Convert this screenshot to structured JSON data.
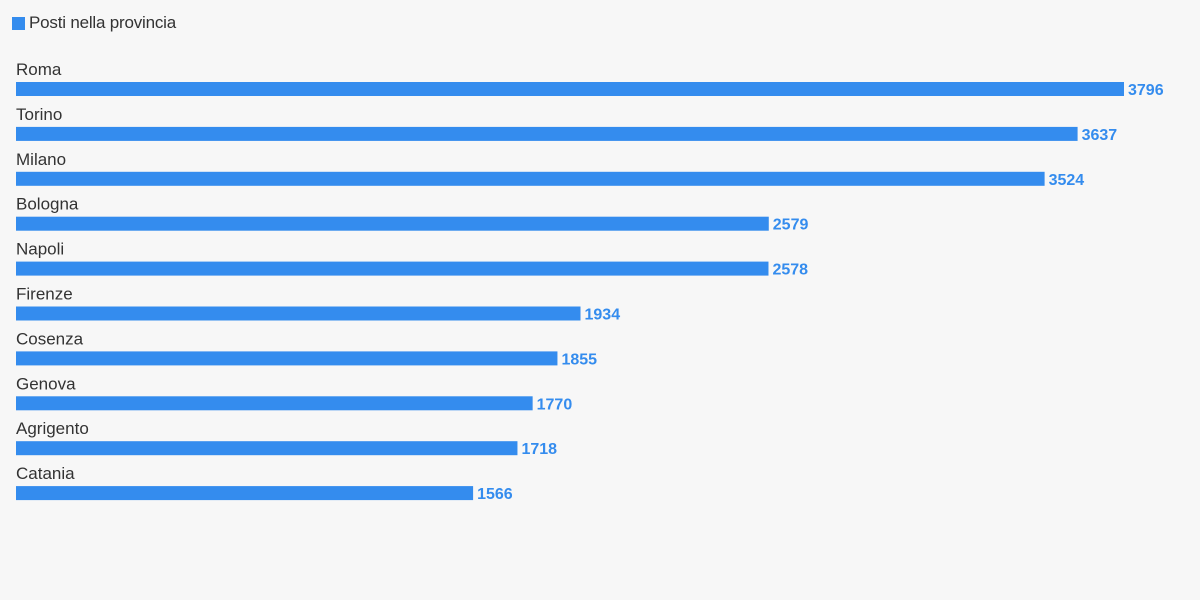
{
  "colors": {
    "bar": "#348cee",
    "background": "#f7f7f7",
    "label_text": "#333333"
  },
  "legend": {
    "label": "Posti nella provincia",
    "placement": "top-left"
  },
  "chart_data": {
    "type": "bar",
    "orientation": "horizontal",
    "categories": [
      "Roma",
      "Torino",
      "Milano",
      "Bologna",
      "Napoli",
      "Firenze",
      "Cosenza",
      "Genova",
      "Agrigento",
      "Catania"
    ],
    "series": [
      {
        "name": "Posti nella provincia",
        "values": [
          3796,
          3637,
          3524,
          2579,
          2578,
          1934,
          1855,
          1770,
          1718,
          1566
        ]
      }
    ],
    "title": "",
    "xlabel": "",
    "ylabel": "",
    "xlim": [
      0,
      3796
    ],
    "grid": false,
    "data_labels": true
  }
}
